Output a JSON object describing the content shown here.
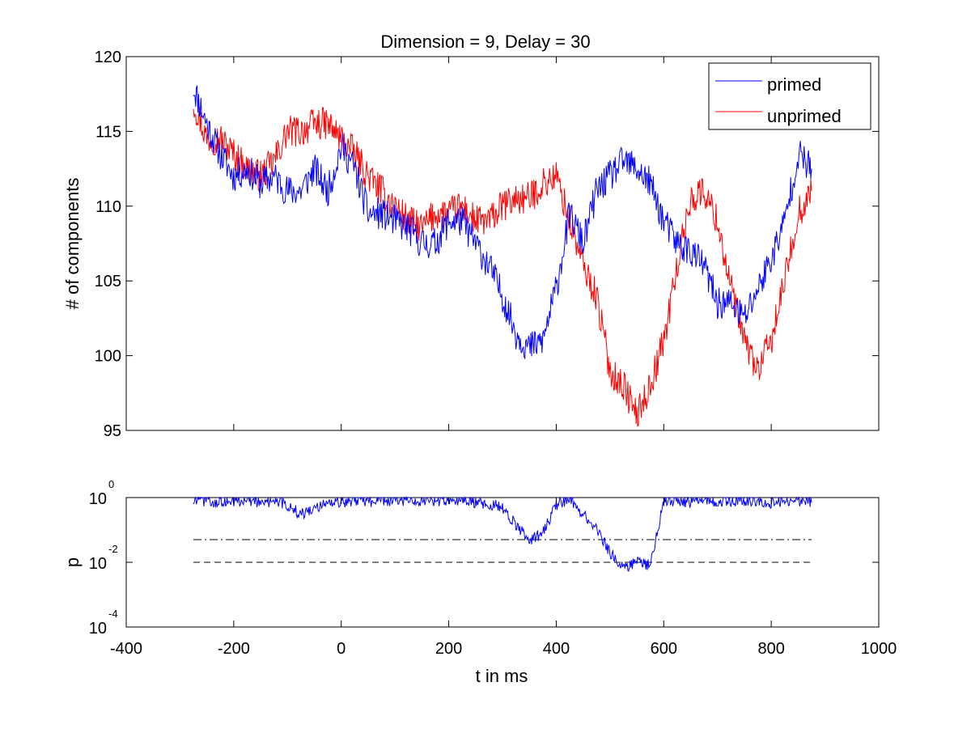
{
  "chart_data": [
    {
      "type": "line",
      "title": "Dimension  = 9, Delay = 30",
      "xlabel": "",
      "ylabel": "# of components",
      "xlim": [
        -400,
        1000
      ],
      "ylim": [
        95,
        120
      ],
      "yticks": [
        "95",
        "100",
        "105",
        "110",
        "115",
        "120"
      ],
      "legend": {
        "position": "top-right",
        "entries": [
          "primed",
          "unprimed"
        ]
      },
      "colors": {
        "primed": "#0000ff",
        "unprimed": "#ff0000"
      },
      "x": [
        -275,
        -250,
        -225,
        -200,
        -175,
        -150,
        -125,
        -100,
        -75,
        -50,
        -25,
        0,
        25,
        50,
        75,
        100,
        125,
        150,
        175,
        200,
        225,
        250,
        275,
        300,
        325,
        350,
        375,
        400,
        425,
        450,
        475,
        500,
        525,
        550,
        575,
        600,
        625,
        650,
        675,
        700,
        725,
        750,
        775,
        800,
        825,
        850,
        875
      ],
      "series": [
        {
          "name": "primed",
          "values": [
            118,
            115.5,
            113.5,
            112,
            112.5,
            111.5,
            112,
            111,
            111,
            112.5,
            111,
            114,
            112.5,
            109.5,
            109.5,
            109,
            108.5,
            107.5,
            107.5,
            109,
            109,
            107.5,
            106,
            104,
            101.5,
            100.5,
            101,
            104.5,
            109.5,
            107.5,
            111,
            112,
            113,
            112.5,
            111.5,
            109,
            107.5,
            107,
            106,
            103.5,
            103.5,
            102.5,
            104.5,
            106.5,
            109,
            113.5,
            112.5
          ]
        },
        {
          "name": "unprimed",
          "values": [
            117,
            114.5,
            114.5,
            113.5,
            112.5,
            112,
            113,
            115,
            115,
            115.5,
            115.5,
            114.5,
            113.5,
            112,
            111,
            110,
            109,
            108.5,
            109.5,
            109.5,
            110,
            109,
            109,
            110,
            110.5,
            110.5,
            111.5,
            112,
            109,
            106,
            104,
            99,
            98,
            96,
            98,
            101,
            106,
            110.5,
            111,
            109,
            104.5,
            101,
            99,
            101,
            105,
            109.5,
            111
          ]
        }
      ]
    },
    {
      "type": "line",
      "title": "",
      "xlabel": "t in ms",
      "ylabel": "p",
      "xlim": [
        -400,
        1000
      ],
      "xticks": [
        "-400",
        "-200",
        "0",
        "200",
        "400",
        "600",
        "800",
        "1000"
      ],
      "y_scale": "log",
      "ylim": [
        0.0001,
        1
      ],
      "yticks": [
        {
          "base": "10",
          "exponent": "0"
        },
        {
          "base": "10",
          "exponent": "-2"
        },
        {
          "base": "10",
          "exponent": "-4"
        }
      ],
      "x": [
        -275,
        -250,
        -225,
        -200,
        -175,
        -150,
        -125,
        -100,
        -75,
        -50,
        -25,
        0,
        25,
        50,
        75,
        100,
        125,
        150,
        175,
        200,
        225,
        250,
        275,
        300,
        325,
        350,
        375,
        400,
        425,
        450,
        475,
        500,
        525,
        550,
        575,
        600,
        625,
        650,
        675,
        700,
        725,
        750,
        775,
        800,
        825,
        850,
        875
      ],
      "series": [
        {
          "color": "#0000ff",
          "values": [
            0.7,
            0.8,
            0.7,
            0.8,
            0.8,
            0.7,
            0.8,
            0.6,
            0.3,
            0.5,
            0.7,
            0.7,
            0.8,
            0.75,
            0.8,
            0.8,
            0.8,
            0.8,
            0.75,
            0.8,
            0.8,
            0.7,
            0.65,
            0.5,
            0.15,
            0.05,
            0.08,
            0.6,
            0.9,
            0.3,
            0.12,
            0.02,
            0.007,
            0.01,
            0.008,
            0.8,
            0.8,
            0.7,
            0.8,
            0.8,
            0.75,
            0.8,
            0.8,
            0.7,
            0.8,
            0.8,
            0.7
          ]
        }
      ],
      "threshold_lines": [
        {
          "y": 0.05,
          "style": "dash-dot",
          "color": "#000000"
        },
        {
          "y": 0.01,
          "style": "dashed",
          "color": "#000000"
        }
      ]
    }
  ]
}
